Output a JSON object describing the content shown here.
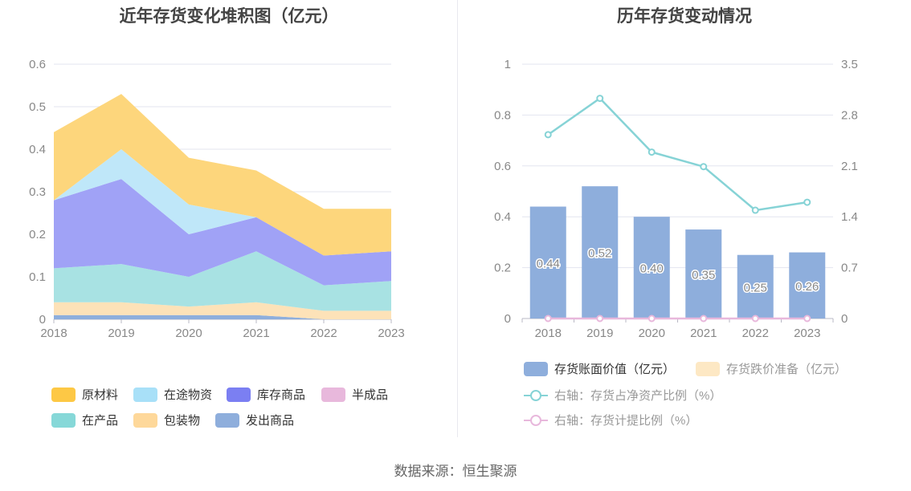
{
  "left": {
    "title": "近年存货变化堆积图（亿元）",
    "chart_data": {
      "type": "area",
      "stacked": true,
      "title": "近年存货变化堆积图（亿元）",
      "x": [
        "2018",
        "2019",
        "2020",
        "2021",
        "2022",
        "2023"
      ],
      "ylim": [
        0,
        0.6
      ],
      "yticks": [
        "0",
        "0.1",
        "0.2",
        "0.3",
        "0.4",
        "0.5",
        "0.6"
      ],
      "grid": true,
      "legend_position": "bottom",
      "series": [
        {
          "name": "发出商品",
          "color": "#8eaedc",
          "values": [
            0.01,
            0.01,
            0.01,
            0.01,
            0.0,
            0.0
          ]
        },
        {
          "name": "包装物",
          "color": "#fde2b8",
          "values": [
            0.03,
            0.03,
            0.02,
            0.03,
            0.02,
            0.02
          ]
        },
        {
          "name": "在产品",
          "color": "#a8e2e3",
          "values": [
            0.08,
            0.09,
            0.07,
            0.12,
            0.06,
            0.07
          ]
        },
        {
          "name": "半成品",
          "color": "#e8b8dc",
          "values": [
            0.0,
            0.0,
            0.0,
            0.0,
            0.0,
            0.0
          ]
        },
        {
          "name": "库存商品",
          "color": "#a0a2f6",
          "values": [
            0.16,
            0.2,
            0.1,
            0.08,
            0.07,
            0.07
          ]
        },
        {
          "name": "在途物资",
          "color": "#bfe7f9",
          "values": [
            0.0,
            0.07,
            0.07,
            0.0,
            0.0,
            0.0
          ]
        },
        {
          "name": "原材料",
          "color": "#fdd67c",
          "values": [
            0.16,
            0.13,
            0.11,
            0.11,
            0.11,
            0.1
          ]
        }
      ]
    },
    "legend": [
      {
        "name": "原材料",
        "color": "#fdc845"
      },
      {
        "name": "在途物资",
        "color": "#a8e0f8"
      },
      {
        "name": "库存商品",
        "color": "#7b7ff2"
      },
      {
        "name": "半成品",
        "color": "#e8b8dc"
      },
      {
        "name": "在产品",
        "color": "#86d8d8"
      },
      {
        "name": "包装物",
        "color": "#fed89a"
      },
      {
        "name": "发出商品",
        "color": "#8eaedc"
      }
    ]
  },
  "right": {
    "title": "历年存货变动情况",
    "chart_data": {
      "type": "bar",
      "title": "历年存货变动情况",
      "categories": [
        "2018",
        "2019",
        "2020",
        "2021",
        "2022",
        "2023"
      ],
      "ylim": [
        0,
        1
      ],
      "yticks": [
        "0",
        "0.2",
        "0.4",
        "0.6",
        "0.8",
        "1"
      ],
      "y2lim": [
        0,
        3.5
      ],
      "y2ticks": [
        "0",
        "0.7",
        "1.4",
        "2.1",
        "2.8",
        "3.5"
      ],
      "grid": true,
      "legend_position": "bottom",
      "series": [
        {
          "name": "存货账面价值（亿元）",
          "type": "bar",
          "axis": "left",
          "color": "#8eaedc",
          "values": [
            0.44,
            0.52,
            0.4,
            0.35,
            0.25,
            0.26
          ],
          "labels": [
            "0.44",
            "0.52",
            "0.40",
            "0.35",
            "0.25",
            "0.26"
          ]
        },
        {
          "name": "存货跌价准备（亿元）",
          "type": "bar",
          "axis": "left",
          "color": "#fde8c4",
          "values": [
            0,
            0,
            0,
            0,
            0,
            0
          ]
        },
        {
          "name": "右轴：存货占净资产比例（%）",
          "type": "line",
          "axis": "right",
          "color": "#86d3d6",
          "values": [
            2.53,
            3.03,
            2.29,
            2.09,
            1.49,
            1.6
          ]
        },
        {
          "name": "右轴：存货计提比例（%）",
          "type": "line",
          "axis": "right",
          "color": "#e8b8dc",
          "values": [
            0,
            0,
            0,
            0,
            0,
            0
          ]
        }
      ]
    }
  },
  "source": "数据来源：恒生聚源"
}
